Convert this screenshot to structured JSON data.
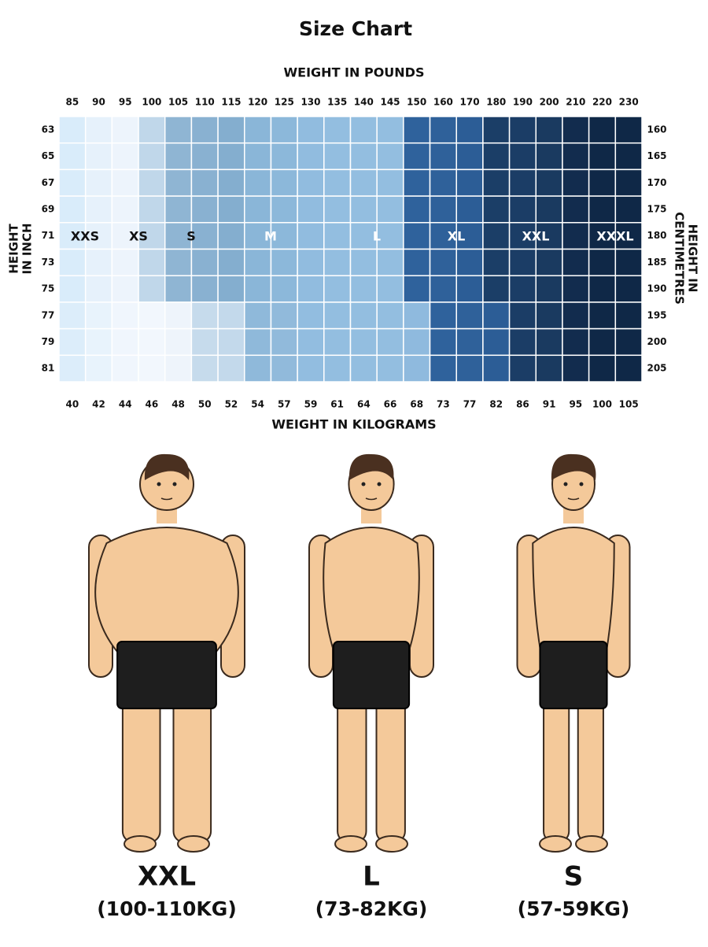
{
  "title": "Size Chart",
  "top_axis_label": "WEIGHT IN POUNDS",
  "bottom_axis_label": "WEIGHT IN KILOGRAMS",
  "left_axis_label": [
    "HEIGHT",
    "IN INCH"
  ],
  "right_axis_label": [
    "HEIGHT IN",
    "CENTIMETRES"
  ],
  "pounds": [
    85,
    90,
    95,
    100,
    105,
    110,
    115,
    120,
    125,
    130,
    135,
    140,
    145,
    150,
    160,
    170,
    180,
    190,
    200,
    210,
    220,
    230
  ],
  "kilograms": [
    40,
    42,
    44,
    46,
    48,
    50,
    52,
    54,
    57,
    59,
    61,
    64,
    66,
    68,
    73,
    77,
    82,
    86,
    91,
    95,
    100,
    105
  ],
  "inches": [
    63,
    65,
    67,
    69,
    71,
    73,
    75,
    77,
    79,
    81
  ],
  "centimetres": [
    160,
    165,
    170,
    175,
    180,
    185,
    190,
    195,
    200,
    205
  ],
  "sizes": [
    "XXS",
    "XS",
    "S",
    "M",
    "L",
    "XL",
    "XXL",
    "XXXL"
  ],
  "figures": [
    {
      "size": "XXL",
      "range": "(100-110KG)"
    },
    {
      "size": "L",
      "range": "(73-82KG)"
    },
    {
      "size": "S",
      "range": "(57-59KG)"
    }
  ]
}
